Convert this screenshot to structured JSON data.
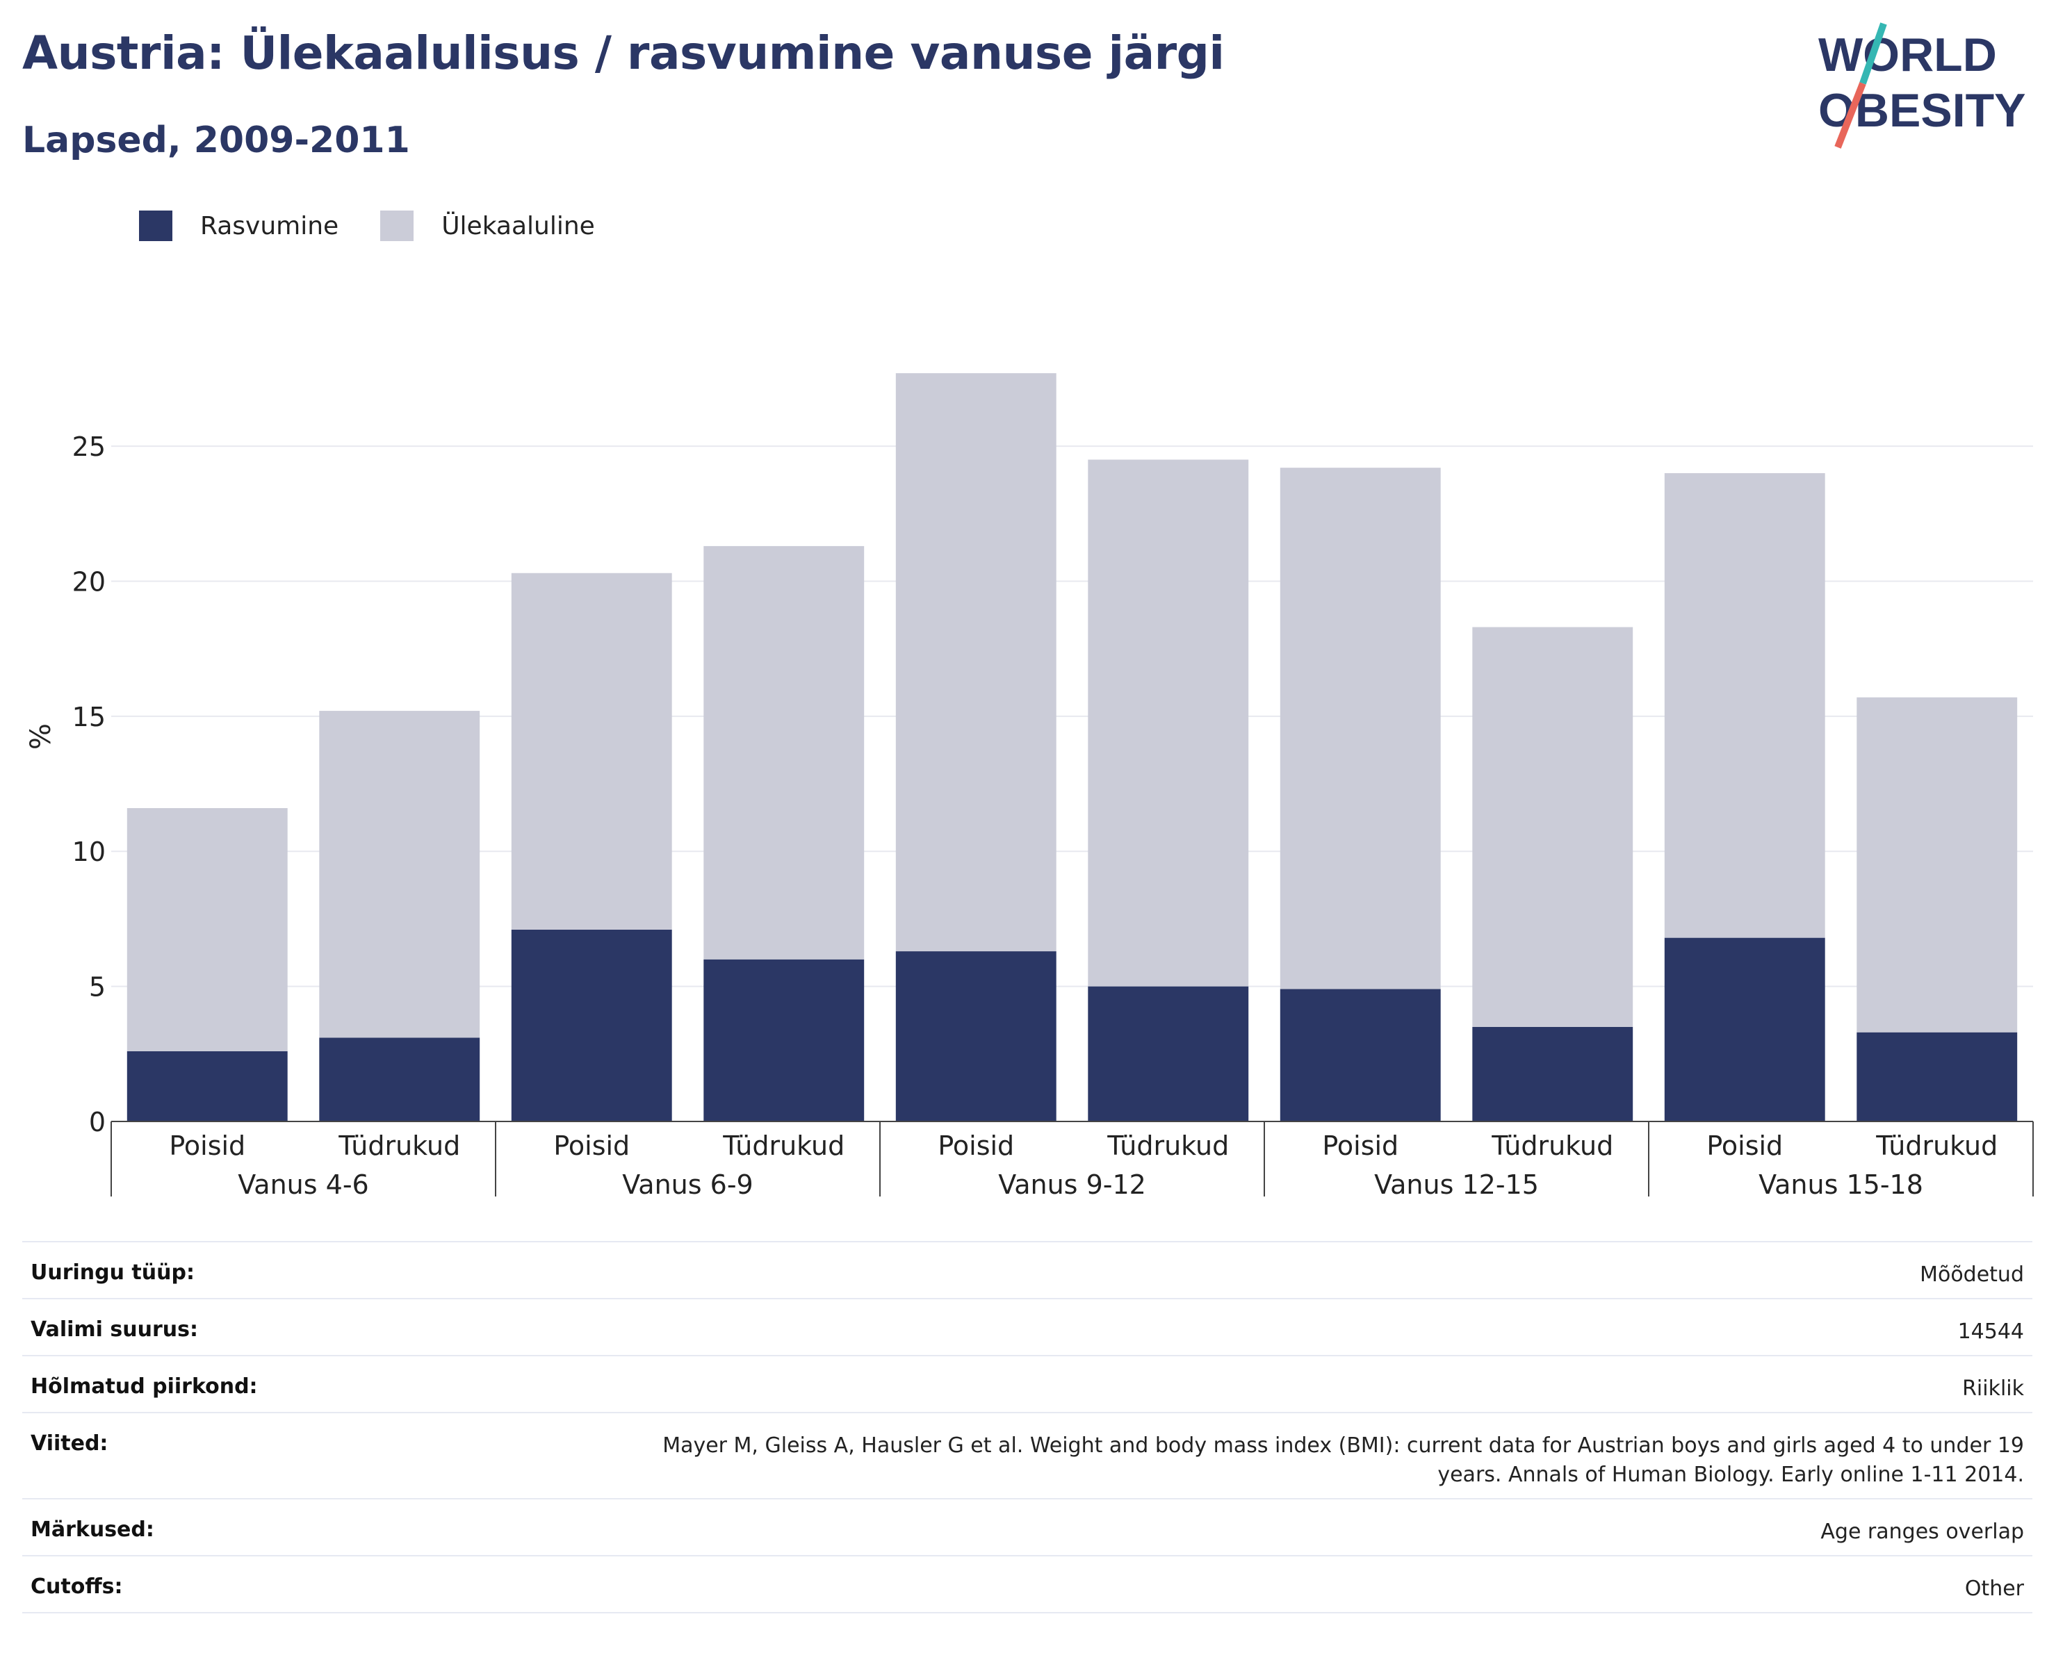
{
  "header": {
    "title": "Austria: Ülekaalulisus / rasvumine vanuse järgi",
    "subtitle": "Lapsed, 2009-2011",
    "logo_text": "WORLD OBESITY"
  },
  "colors": {
    "obesity": "#2b3765",
    "overweight": "#cbccd8",
    "title": "#2b3765",
    "logo_teal": "#35b7b3",
    "logo_red": "#e8665a"
  },
  "legend": [
    {
      "label": "Rasvumine",
      "color": "#2b3765"
    },
    {
      "label": "Ülekaaluline",
      "color": "#cbccd8"
    }
  ],
  "chart_data": {
    "type": "bar",
    "stacked": true,
    "ylabel": "%",
    "ylim": [
      0,
      28.5
    ],
    "yticks": [
      0,
      5,
      10,
      15,
      20,
      25
    ],
    "grid": true,
    "legend_position": "top-left",
    "categories": [
      "Poisid",
      "Tüdrukud",
      "Poisid",
      "Tüdrukud",
      "Poisid",
      "Tüdrukud",
      "Poisid",
      "Tüdrukud",
      "Poisid",
      "Tüdrukud"
    ],
    "groups": [
      {
        "label": "Vanus 4-6",
        "span": 2
      },
      {
        "label": "Vanus 6-9",
        "span": 2
      },
      {
        "label": "Vanus 9-12",
        "span": 2
      },
      {
        "label": "Vanus 12-15",
        "span": 2
      },
      {
        "label": "Vanus 15-18",
        "span": 2
      }
    ],
    "series": [
      {
        "name": "Rasvumine",
        "values": [
          2.6,
          3.1,
          7.1,
          6.0,
          6.3,
          5.0,
          4.9,
          3.5,
          6.8,
          3.3
        ]
      },
      {
        "name": "Ülekaaluline",
        "values": [
          9.0,
          12.1,
          13.2,
          15.3,
          21.4,
          19.5,
          19.3,
          14.8,
          17.2,
          12.4
        ]
      }
    ]
  },
  "info": [
    {
      "label": "Uuringu tüüp:",
      "value": "Mõõdetud"
    },
    {
      "label": "Valimi suurus:",
      "value": "14544"
    },
    {
      "label": "Hõlmatud piirkond:",
      "value": "Riiklik"
    },
    {
      "label": "Viited:",
      "value": "Mayer M, Gleiss A, Hausler G et al. Weight and body mass index (BMI): current data for Austrian boys and girls aged 4 to under 19 years. Annals of Human Biology. Early online 1-11 2014."
    },
    {
      "label": "Märkused:",
      "value": "Age ranges overlap"
    },
    {
      "label": "Cutoffs:",
      "value": "Other"
    }
  ]
}
